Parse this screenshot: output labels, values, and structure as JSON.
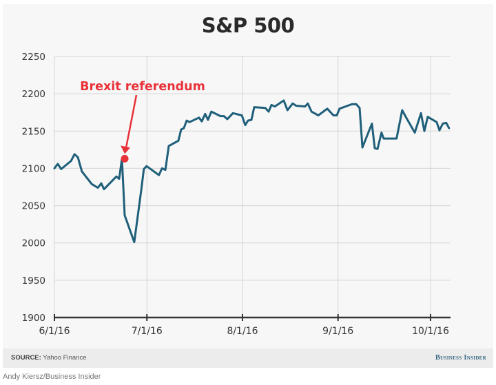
{
  "chart_data": {
    "type": "line",
    "title": "S&P 500",
    "xlabel": "",
    "ylabel": "",
    "ylim": [
      1900,
      2250
    ],
    "yticks": [
      1900,
      1950,
      2000,
      2050,
      2100,
      2150,
      2200,
      2250
    ],
    "ytick_labels": [
      "1900",
      "1950",
      "2000",
      "2050",
      "2100",
      "2150",
      "2200",
      "2250"
    ],
    "xlim_days_from_2016_06_01": [
      0,
      128
    ],
    "xticks_days": [
      0,
      30,
      61,
      92,
      122
    ],
    "xtick_labels": [
      "6/1/16",
      "7/1/16",
      "8/1/16",
      "9/1/16",
      "10/1/16"
    ],
    "grid": true,
    "series": [
      {
        "name": "S&P 500",
        "color": "#1f5f7a",
        "x_days": [
          0,
          1.1,
          2.2,
          5.4,
          6.5,
          7.6,
          8.9,
          12.1,
          14.1,
          15.2,
          16.1,
          20.1,
          21.0,
          21.9,
          22.8,
          25.9,
          28.2,
          29.0,
          29.9,
          33.9,
          34.9,
          36.0,
          37.1,
          40.2,
          41.1,
          42.0,
          42.9,
          43.8,
          46.9,
          47.8,
          48.9,
          49.8,
          50.9,
          53.9,
          55.0,
          56.1,
          57.9,
          60.8,
          61.9,
          62.8,
          63.9,
          64.8,
          68.4,
          69.5,
          70.4,
          71.5,
          74.4,
          75.6,
          77.3,
          78.4,
          81.3,
          82.2,
          83.4,
          85.6,
          88.5,
          90.5,
          91.6,
          92.5,
          96.5,
          97.9,
          99.0,
          99.9,
          103.0,
          103.9,
          104.8,
          106.1,
          106.8,
          111.0,
          112.8,
          114.4,
          116.9,
          118.9,
          120.0,
          121.1,
          124.0,
          124.9,
          126.0,
          127.1,
          128.0
        ],
        "values": [
          2100,
          2106,
          2099,
          2110,
          2119,
          2115,
          2096,
          2079,
          2074,
          2080,
          2072,
          2089,
          2086,
          2113,
          2037,
          2001,
          2072,
          2099,
          2103,
          2091,
          2100,
          2098,
          2130,
          2137,
          2152,
          2154,
          2164,
          2162,
          2168,
          2163,
          2173,
          2165,
          2176,
          2170,
          2170,
          2166,
          2174,
          2171,
          2158,
          2164,
          2165,
          2182,
          2181,
          2176,
          2185,
          2183,
          2191,
          2178,
          2187,
          2184,
          2183,
          2187,
          2176,
          2171,
          2180,
          2171,
          2171,
          2180,
          2186,
          2186,
          2181,
          2128,
          2160,
          2127,
          2126,
          2148,
          2140,
          2140,
          2178,
          2166,
          2148,
          2174,
          2150,
          2169,
          2162,
          2151,
          2160,
          2161,
          2154
        ]
      }
    ],
    "annotations": [
      {
        "text": "Brexit referendum",
        "x_day": 22.8,
        "value": 2113,
        "color": "#e8323a"
      }
    ]
  },
  "footer": {
    "source_label": "SOURCE:",
    "source_value": "Yahoo Finance",
    "brand": "Business Insider"
  },
  "credit": "Andy Kiersz/Business Insider"
}
